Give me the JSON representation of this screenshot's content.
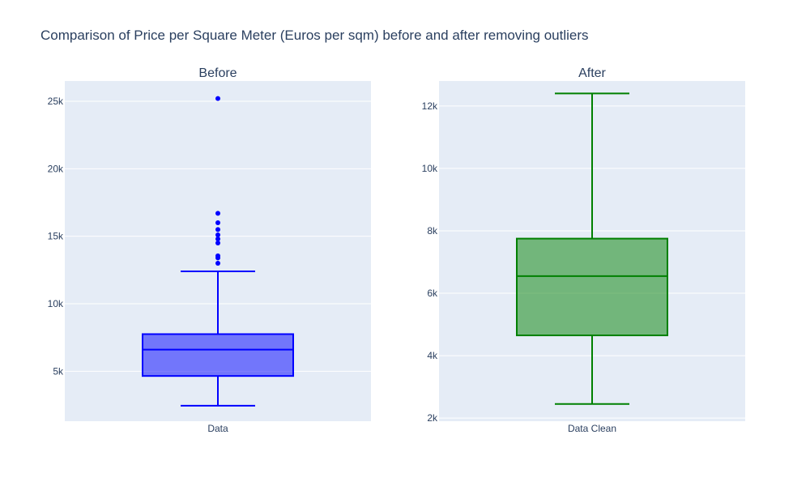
{
  "chart_data": {
    "title": "Comparison of Price per Square Meter (Euros per sqm) before and after removing outliers",
    "panels": [
      {
        "type": "box",
        "subtitle": "Before",
        "category": "Data",
        "ylim": [
          1300,
          26500
        ],
        "yticks": [
          5000,
          10000,
          15000,
          20000,
          25000
        ],
        "ytick_labels": [
          "5k",
          "10k",
          "15k",
          "20k",
          "25k"
        ],
        "box": {
          "lower_fence": 2450,
          "q1": 4650,
          "median": 6600,
          "q3": 7750,
          "upper_fence": 12400
        },
        "outliers": [
          13000,
          13400,
          13550,
          14500,
          14800,
          15100,
          15500,
          16000,
          16700,
          25200
        ],
        "color": "#0000ff",
        "fill": "rgba(0,0,255,0.5)"
      },
      {
        "type": "box",
        "subtitle": "After",
        "category": "Data Clean",
        "ylim": [
          1900,
          12800
        ],
        "yticks": [
          2000,
          4000,
          6000,
          8000,
          10000,
          12000
        ],
        "ytick_labels": [
          "2k",
          "4k",
          "6k",
          "8k",
          "10k",
          "12k"
        ],
        "box": {
          "lower_fence": 2450,
          "q1": 4650,
          "median": 6550,
          "q3": 7750,
          "upper_fence": 12400
        },
        "outliers": [],
        "color": "#008000",
        "fill": "rgba(0,128,0,0.5)"
      }
    ]
  }
}
